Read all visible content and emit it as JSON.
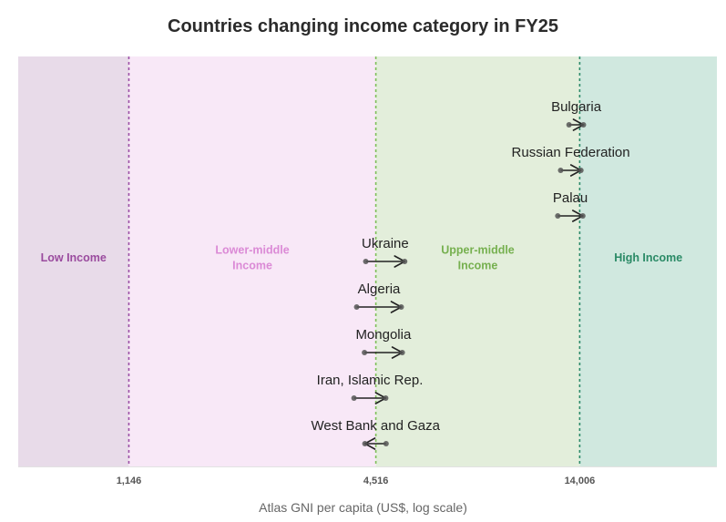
{
  "chart_data": {
    "type": "arrow-range",
    "title": "Countries changing income category in FY25",
    "xlabel": "Atlas GNI per capita (US$, log scale)",
    "x_scale": "log",
    "xlim": [
      620,
      30000
    ],
    "ticks": [
      {
        "value": 1146,
        "label": "1,146"
      },
      {
        "value": 4516,
        "label": "4,516"
      },
      {
        "value": 14006,
        "label": "14,006"
      }
    ],
    "thresholds": [
      {
        "value": 1146,
        "color": "#9c4fa6"
      },
      {
        "value": 4516,
        "color": "#7fbf5a"
      },
      {
        "value": 14006,
        "color": "#2e8b6a"
      }
    ],
    "bands": [
      {
        "label": "Low Income",
        "from": 620,
        "to": 1146,
        "fill": "#e8dbe9",
        "text_color": "#9a4b9e"
      },
      {
        "label": "Lower-middle Income",
        "from": 1146,
        "to": 4516,
        "fill": "#f8e8f7",
        "text_color": "#db8ad6"
      },
      {
        "label": "Upper-middle Income",
        "from": 4516,
        "to": 14006,
        "fill": "#e3eedb",
        "text_color": "#76b04f"
      },
      {
        "label": "High Income",
        "from": 14006,
        "to": 30000,
        "fill": "#d0e8df",
        "text_color": "#2a8a66"
      }
    ],
    "series": [
      {
        "country": "Bulgaria",
        "from": 13200,
        "to": 14300
      },
      {
        "country": "Russian Federation",
        "from": 12600,
        "to": 14100
      },
      {
        "country": "Palau",
        "from": 12400,
        "to": 14250
      },
      {
        "country": "Ukraine",
        "from": 4270,
        "to": 5300
      },
      {
        "country": "Algeria",
        "from": 4060,
        "to": 5200
      },
      {
        "country": "Mongolia",
        "from": 4240,
        "to": 5230
      },
      {
        "country": "Iran, Islamic Rep.",
        "from": 4000,
        "to": 4770
      },
      {
        "country": "West Bank and Gaza",
        "from": 4780,
        "to": 4250
      }
    ],
    "arrow_color": "#222222",
    "point_color": "#555555"
  }
}
